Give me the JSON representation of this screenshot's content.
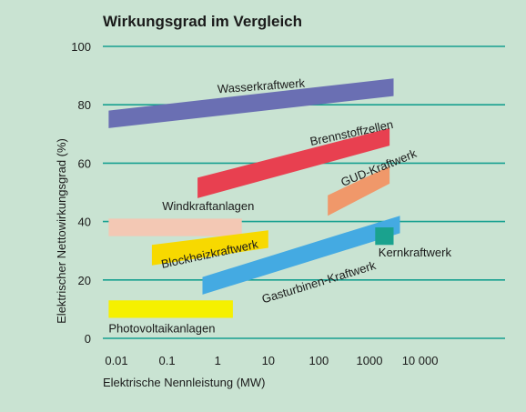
{
  "chart_data": {
    "type": "area",
    "title": "Wirkungsgrad im Vergleich",
    "xlabel": "Elektrische Nennleistung (MW)",
    "ylabel": "Elektrischer Nettowirkungsgrad (%)",
    "x_scale": "log",
    "xlim": [
      0.006,
      30000
    ],
    "ylim": [
      0,
      100
    ],
    "x_ticks": [
      0.01,
      0.1,
      1,
      10,
      100,
      1000,
      10000
    ],
    "x_tick_labels": [
      "0.01",
      "0.1",
      "1",
      "10",
      "100",
      "1000",
      "10 000"
    ],
    "y_ticks": [
      0,
      20,
      40,
      60,
      80,
      100
    ],
    "y_tick_labels": [
      "0",
      "20",
      "40",
      "60",
      "80",
      "100"
    ],
    "grid": "horizontal",
    "series": [
      {
        "name": "Wasserkraftwerk",
        "color": "#6a6fb3",
        "polygon": [
          [
            0.007,
            78
          ],
          [
            3000,
            89
          ],
          [
            3000,
            83
          ],
          [
            0.007,
            72
          ]
        ],
        "label_at": [
          1,
          84
        ],
        "label_angle": -4
      },
      {
        "name": "Brennstoffzellen",
        "color": "#e84050",
        "polygon": [
          [
            0.4,
            55
          ],
          [
            2500,
            72
          ],
          [
            2500,
            66
          ],
          [
            0.4,
            48
          ]
        ],
        "label_at": [
          70,
          66
        ],
        "label_angle": -12
      },
      {
        "name": "GUD-Kraftwerk",
        "color": "#f0986a",
        "polygon": [
          [
            150,
            49
          ],
          [
            2500,
            59
          ],
          [
            2500,
            53
          ],
          [
            150,
            42
          ]
        ],
        "label_at": [
          300,
          52
        ],
        "label_angle": -22
      },
      {
        "name": "Windkraftanlagen",
        "color": "#f3c8b4",
        "polygon": [
          [
            0.007,
            41
          ],
          [
            3,
            41
          ],
          [
            3,
            35
          ],
          [
            0.007,
            35
          ]
        ],
        "label_at": [
          0.08,
          44
        ],
        "label_angle": 0
      },
      {
        "name": "Blockheizkraftwerk",
        "color": "#f7d900",
        "polygon": [
          [
            0.05,
            32
          ],
          [
            10,
            37
          ],
          [
            10,
            31
          ],
          [
            0.05,
            25
          ]
        ],
        "label_at": [
          0.08,
          24
        ],
        "label_angle": -12
      },
      {
        "name": "Gasturbinen-Kraftwerk",
        "color": "#44aae2",
        "polygon": [
          [
            0.5,
            21
          ],
          [
            4000,
            42
          ],
          [
            4000,
            36
          ],
          [
            0.5,
            15
          ]
        ],
        "label_at": [
          8,
          12
        ],
        "label_angle": -17
      },
      {
        "name": "Kernkraftwerk",
        "color": "#1aa28e",
        "polygon": [
          [
            1300,
            38
          ],
          [
            3000,
            38
          ],
          [
            3000,
            32
          ],
          [
            1300,
            32
          ]
        ],
        "label_at": [
          1500,
          28
        ],
        "label_angle": 0
      },
      {
        "name": "Photovoltaikanlagen",
        "color": "#f5f000",
        "polygon": [
          [
            0.007,
            13
          ],
          [
            2,
            13
          ],
          [
            2,
            7
          ],
          [
            0.007,
            7
          ]
        ],
        "label_at": [
          0.007,
          2
        ],
        "label_angle": 0
      }
    ]
  }
}
